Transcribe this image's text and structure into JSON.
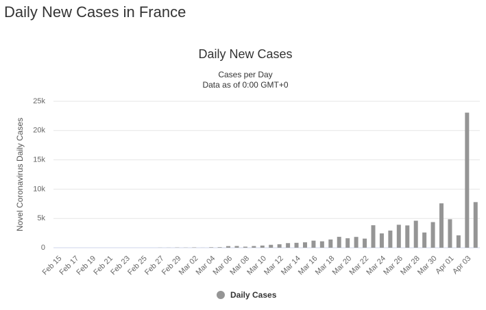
{
  "page_title": "Daily New Cases in France",
  "chart_data": {
    "type": "bar",
    "title": "Daily New Cases",
    "subtitle": [
      "Cases per Day",
      "Data as of 0:00 GMT+0"
    ],
    "y_label": "Novel Coronavirus Daily Cases",
    "categories": [
      "Feb 15",
      null,
      "Feb 17",
      null,
      "Feb 19",
      null,
      "Feb 21",
      null,
      "Feb 23",
      null,
      "Feb 25",
      null,
      "Feb 27",
      null,
      "Feb 29",
      null,
      "Mar 02",
      null,
      "Mar 04",
      null,
      "Mar 06",
      null,
      "Mar 08",
      null,
      "Mar 10",
      null,
      "Mar 12",
      null,
      "Mar 14",
      null,
      "Mar 16",
      null,
      "Mar 18",
      null,
      "Mar 20",
      null,
      "Mar 22",
      null,
      "Mar 24",
      null,
      "Mar 26",
      null,
      "Mar 28",
      null,
      "Mar 30",
      null,
      "Apr 01",
      null,
      "Apr 03",
      null
    ],
    "series": [
      {
        "name": "Daily Cases",
        "color": "#959595",
        "values": [
          0,
          0,
          0,
          0,
          0,
          0,
          0,
          0,
          0,
          0,
          0,
          2,
          20,
          19,
          43,
          30,
          61,
          13,
          81,
          92,
          276,
          296,
          177,
          286,
          372,
          497,
          595,
          785,
          838,
          924,
          1210,
          1097,
          1404,
          1861,
          1617,
          1847,
          1559,
          3838,
          2446,
          2931,
          3922,
          3809,
          4611,
          2599,
          4376,
          7578,
          4861,
          2116,
          23060,
          7788
        ]
      }
    ],
    "ylim": [
      0,
      25000
    ],
    "yticks": [
      0,
      {
        "value": 5000,
        "label": "5k"
      },
      {
        "value": 10000,
        "label": "10k"
      },
      {
        "value": 15000,
        "label": "15k"
      },
      {
        "value": 20000,
        "label": "20k"
      },
      {
        "value": 25000,
        "label": "25k"
      }
    ],
    "grid": true
  }
}
